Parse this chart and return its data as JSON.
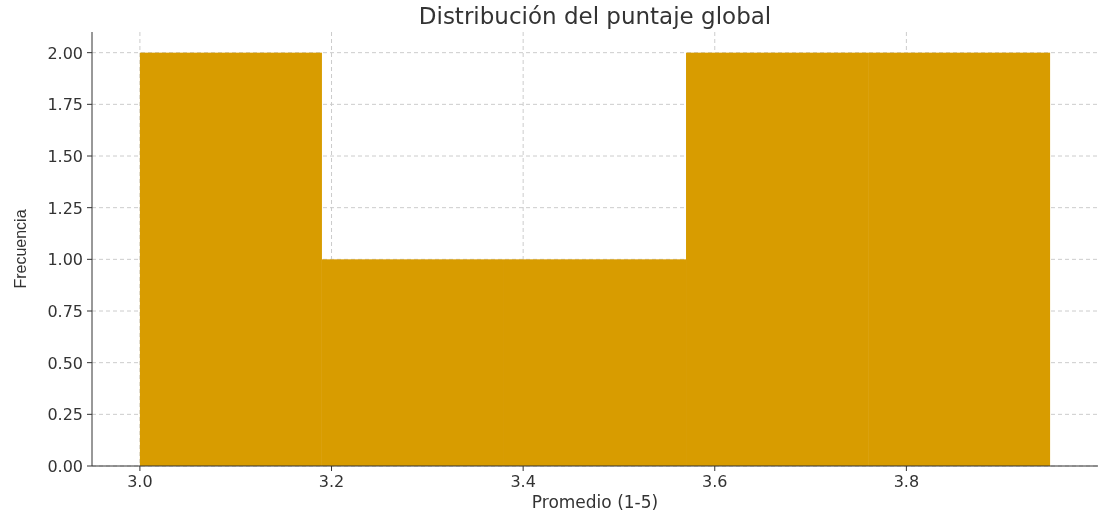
{
  "chart_data": {
    "type": "histogram",
    "title": "Distribución del puntaje global",
    "xlabel": "Promedio (1-5)",
    "ylabel": "Frecuencia",
    "bins": [
      3.0,
      3.19,
      3.38,
      3.57,
      3.76,
      3.95
    ],
    "values": [
      2,
      1,
      1,
      2,
      2
    ],
    "color": "#d89c00",
    "xlim": [
      2.95,
      4.0
    ],
    "xticks": [
      {
        "value": 3.0,
        "label": "3.0"
      },
      {
        "value": 3.2,
        "label": "3.2"
      },
      {
        "value": 3.4,
        "label": "3.4"
      },
      {
        "value": 3.6,
        "label": "3.6"
      },
      {
        "value": 3.8,
        "label": "3.8"
      }
    ],
    "ylim": [
      0,
      2.1
    ],
    "yticks": [
      {
        "value": 0,
        "label": "0.00"
      },
      {
        "value": 0.25,
        "label": "0.25"
      },
      {
        "value": 0.5,
        "label": "0.50"
      },
      {
        "value": 0.75,
        "label": "0.75"
      },
      {
        "value": 1,
        "label": "1.00"
      },
      {
        "value": 1.25,
        "label": "1.25"
      },
      {
        "value": 1.5,
        "label": "1.50"
      },
      {
        "value": 1.75,
        "label": "1.75"
      },
      {
        "value": 2,
        "label": "2.00"
      }
    ],
    "grid": true
  }
}
